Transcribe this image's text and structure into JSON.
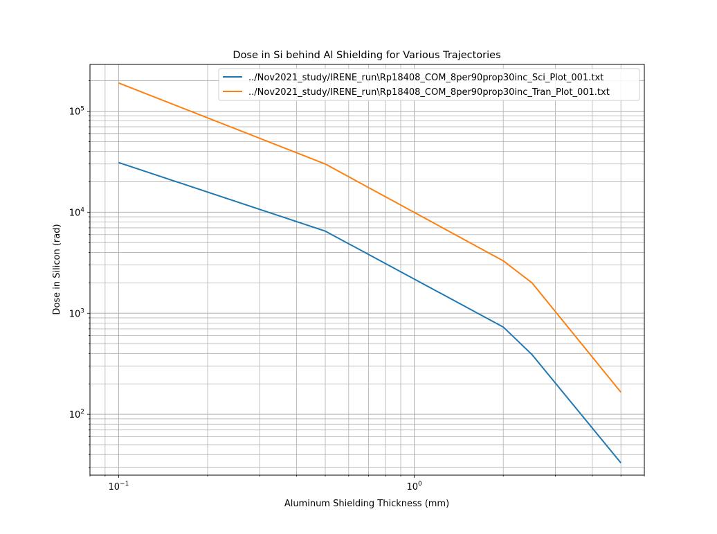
{
  "chart_data": {
    "type": "line",
    "title": "Dose in Si behind Al Shielding for Various Trajectories",
    "xlabel": "Aluminum Shielding Thickness (mm)",
    "ylabel": "Dose in Silicon (rad)",
    "xscale": "log",
    "yscale": "log",
    "xlim": [
      0.08,
      6.0
    ],
    "ylim": [
      25,
      290000
    ],
    "grid": "both major and minor",
    "legend_position": "top-right",
    "x_ticks": [
      {
        "base": "10",
        "exp": "−1",
        "value": 0.1
      },
      {
        "base": "10",
        "exp": "0",
        "value": 1
      }
    ],
    "y_ticks": [
      {
        "base": "10",
        "exp": "2",
        "value": 100
      },
      {
        "base": "10",
        "exp": "3",
        "value": 1000
      },
      {
        "base": "10",
        "exp": "4",
        "value": 10000
      },
      {
        "base": "10",
        "exp": "5",
        "value": 100000
      }
    ],
    "series": [
      {
        "name": "../Nov2021_study/IRENE_run\\Rp18408_COM_8per90prop30inc_Sci_Plot_001.txt",
        "color": "#1f77b4",
        "x": [
          0.1,
          0.5,
          2.0,
          2.5,
          5.0
        ],
        "y": [
          31000,
          6500,
          730,
          390,
          33
        ]
      },
      {
        "name": "../Nov2021_study/IRENE_run\\Rp18408_COM_8per90prop30inc_Tran_Plot_001.txt",
        "color": "#ff7f0e",
        "x": [
          0.1,
          0.5,
          2.0,
          2.5,
          5.0
        ],
        "y": [
          190000,
          30000,
          3300,
          2000,
          165
        ]
      }
    ]
  }
}
